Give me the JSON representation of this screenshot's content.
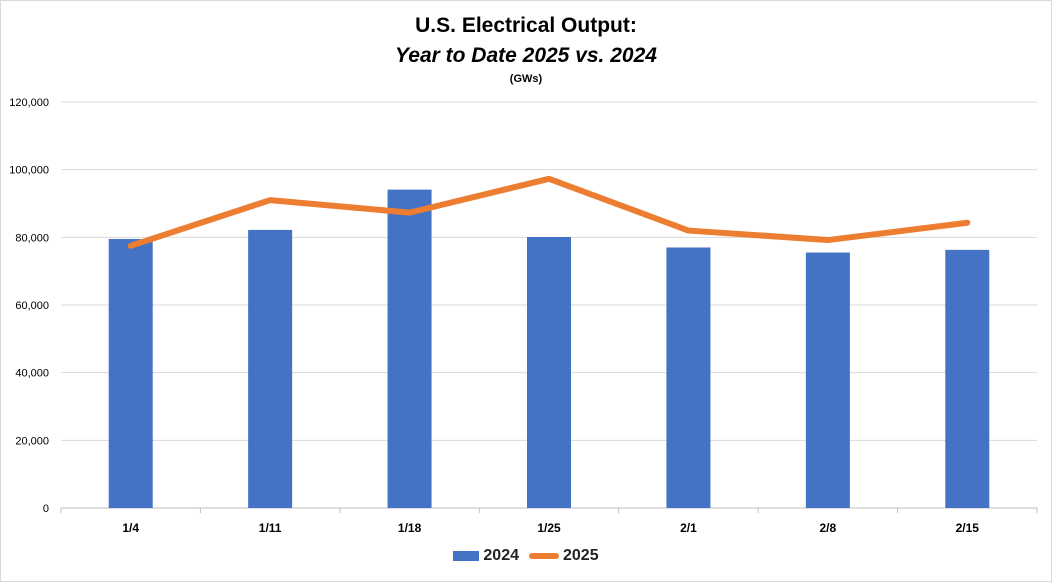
{
  "chart_data": {
    "type": "bar",
    "title": "U.S. Electrical Output:",
    "subtitle": "Year to Date 2025 vs. 2024",
    "unit_label": "(GWs)",
    "categories": [
      "1/4",
      "1/11",
      "1/18",
      "1/25",
      "2/1",
      "2/8",
      "2/15"
    ],
    "series": [
      {
        "name": "2024",
        "kind": "bar",
        "color": "#4472c4",
        "values": [
          79500,
          82200,
          94100,
          80100,
          77000,
          75500,
          76300
        ]
      },
      {
        "name": "2025",
        "kind": "line",
        "color": "#ed7d31",
        "values": [
          77500,
          91000,
          87300,
          97300,
          82000,
          79200,
          84300
        ]
      }
    ],
    "ylim": [
      0,
      120000
    ],
    "yticks": [
      0,
      20000,
      40000,
      60000,
      80000,
      100000,
      120000
    ],
    "ytick_labels": [
      "0",
      "20,000",
      "40,000",
      "60,000",
      "80,000",
      "100,000",
      "120,000"
    ],
    "grid": true,
    "legend_position": "bottom"
  }
}
